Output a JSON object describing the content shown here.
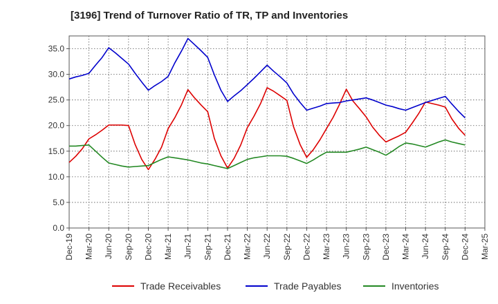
{
  "title": "[3196]  Trend of Turnover Ratio of TR, TP and Inventories",
  "chart_data": {
    "type": "line",
    "title": "[3196]  Trend of Turnover Ratio of TR, TP and Inventories",
    "xlabel": "",
    "ylabel": "",
    "ylim": [
      0,
      37.5
    ],
    "yticks": [
      "0.0",
      "5.0",
      "10.0",
      "15.0",
      "20.0",
      "25.0",
      "30.0",
      "35.0"
    ],
    "xticks": [
      "Dec-19",
      "Mar-20",
      "Jun-20",
      "Sep-20",
      "Dec-20",
      "Mar-21",
      "Jun-21",
      "Sep-21",
      "Dec-21",
      "Mar-22",
      "Jun-22",
      "Sep-22",
      "Dec-22",
      "Mar-23",
      "Jun-23",
      "Sep-23",
      "Dec-23",
      "Mar-24",
      "Jun-24",
      "Sep-24",
      "Dec-24",
      "Mar-25"
    ],
    "grid": true,
    "legend_position": "bottom",
    "x": [
      "Dec-19",
      "Jan-20",
      "Feb-20",
      "Mar-20",
      "Apr-20",
      "May-20",
      "Jun-20",
      "Jul-20",
      "Aug-20",
      "Sep-20",
      "Oct-20",
      "Nov-20",
      "Dec-20",
      "Jan-21",
      "Feb-21",
      "Mar-21",
      "Apr-21",
      "May-21",
      "Jun-21",
      "Jul-21",
      "Aug-21",
      "Sep-21",
      "Oct-21",
      "Nov-21",
      "Dec-21",
      "Jan-22",
      "Feb-22",
      "Mar-22",
      "Apr-22",
      "May-22",
      "Jun-22",
      "Jul-22",
      "Aug-22",
      "Sep-22",
      "Oct-22",
      "Nov-22",
      "Dec-22",
      "Jan-23",
      "Feb-23",
      "Mar-23",
      "Apr-23",
      "May-23",
      "Jun-23",
      "Jul-23",
      "Aug-23",
      "Sep-23",
      "Oct-23",
      "Nov-23",
      "Dec-23",
      "Jan-24",
      "Feb-24",
      "Mar-24",
      "Apr-24",
      "May-24",
      "Jun-24",
      "Jul-24",
      "Aug-24",
      "Sep-24",
      "Oct-24",
      "Nov-24",
      "Dec-24"
    ],
    "series": [
      {
        "name": "Trade Receivables",
        "color": "#dd0000",
        "values": [
          12.8,
          14.0,
          15.5,
          17.4,
          18.2,
          19.1,
          20.1,
          20.1,
          20.1,
          20.0,
          16.3,
          13.4,
          11.4,
          13.4,
          15.8,
          19.4,
          21.5,
          24.0,
          27.0,
          25.4,
          24.0,
          22.7,
          17.5,
          14.1,
          11.7,
          13.6,
          16.2,
          19.6,
          21.8,
          24.3,
          27.4,
          26.7,
          25.8,
          24.9,
          19.8,
          16.3,
          13.8,
          15.3,
          17.2,
          19.4,
          21.6,
          24.2,
          27.1,
          24.8,
          23.3,
          21.7,
          19.7,
          18.1,
          16.8,
          17.4,
          18.0,
          18.7,
          20.5,
          22.4,
          24.6,
          24.3,
          24.0,
          23.6,
          21.3,
          19.5,
          18.1
        ]
      },
      {
        "name": "Trade Payables",
        "color": "#0000cc",
        "values": [
          29.1,
          29.5,
          29.8,
          30.2,
          31.8,
          33.3,
          35.2,
          34.2,
          33.1,
          32.0,
          30.2,
          28.5,
          26.9,
          27.8,
          28.6,
          29.6,
          32.2,
          34.5,
          37.0,
          35.8,
          34.6,
          33.3,
          29.9,
          26.9,
          24.7,
          25.8,
          26.8,
          28.0,
          29.2,
          30.5,
          31.8,
          30.6,
          29.5,
          28.3,
          26.2,
          24.5,
          23.0,
          23.4,
          23.8,
          24.3,
          24.4,
          24.5,
          24.8,
          25.0,
          25.2,
          25.4,
          25.0,
          24.5,
          24.0,
          23.7,
          23.3,
          23.0,
          23.5,
          24.0,
          24.5,
          24.9,
          25.3,
          25.7,
          24.2,
          22.8,
          21.5
        ]
      },
      {
        "name": "Inventories",
        "color": "#228822",
        "values": [
          16.0,
          16.0,
          16.1,
          16.2,
          15.0,
          13.8,
          12.7,
          12.4,
          12.1,
          11.9,
          12.0,
          12.1,
          12.2,
          12.8,
          13.4,
          13.9,
          13.7,
          13.5,
          13.3,
          13.0,
          12.7,
          12.5,
          12.2,
          11.9,
          11.6,
          12.2,
          12.8,
          13.4,
          13.7,
          13.9,
          14.1,
          14.1,
          14.1,
          14.0,
          13.6,
          13.1,
          12.6,
          13.3,
          14.1,
          14.8,
          14.8,
          14.8,
          14.8,
          15.1,
          15.4,
          15.8,
          15.3,
          14.8,
          14.2,
          15.0,
          15.9,
          16.6,
          16.4,
          16.1,
          15.8,
          16.3,
          16.8,
          17.2,
          16.8,
          16.5,
          16.2
        ]
      }
    ]
  }
}
